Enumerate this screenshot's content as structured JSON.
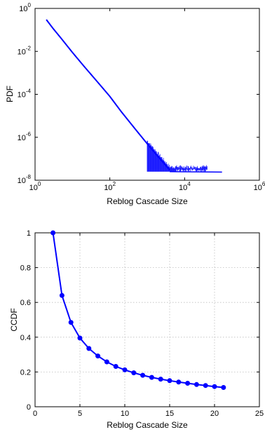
{
  "colors": {
    "series": "#0000ff",
    "axis": "#000000",
    "grid": "#bdbdbd"
  },
  "chart_data": [
    {
      "type": "line",
      "title": "",
      "xlabel": "Reblog Cascade Size",
      "ylabel": "PDF",
      "xscale": "log",
      "yscale": "log",
      "xlim": [
        1,
        1000000
      ],
      "ylim": [
        1e-08,
        1
      ],
      "grid": false,
      "legend": "none",
      "x_ticks": [
        {
          "value": 1,
          "base": "10",
          "exp": "0"
        },
        {
          "value": 100,
          "base": "10",
          "exp": "2"
        },
        {
          "value": 10000,
          "base": "10",
          "exp": "4"
        },
        {
          "value": 1000000,
          "base": "10",
          "exp": "6"
        }
      ],
      "y_ticks": [
        {
          "value": 1e-08,
          "base": "10",
          "exp": "-8"
        },
        {
          "value": 1e-06,
          "base": "10",
          "exp": "-6"
        },
        {
          "value": 0.0001,
          "base": "10",
          "exp": "-4"
        },
        {
          "value": 0.01,
          "base": "10",
          "exp": "-2"
        },
        {
          "value": 1,
          "base": "10",
          "exp": "0"
        }
      ],
      "series": [
        {
          "x": [
            2,
            3,
            5,
            10,
            20,
            50,
            100,
            200,
            500,
            1000,
            2000,
            4000
          ],
          "y": [
            0.3,
            0.12,
            0.04,
            0.009,
            0.0021,
            0.00033,
            8e-05,
            1.6e-05,
            2.2e-06,
            5e-07,
            1.2e-07,
            3e-08
          ]
        }
      ],
      "scatter_band": {
        "x_min": 1000,
        "x_max": 40000,
        "y_floor": 2.5e-08
      },
      "tail": {
        "x": [
          4000,
          100000
        ],
        "y": [
          2.5e-08,
          2.4e-08
        ]
      }
    },
    {
      "type": "line",
      "title": "",
      "xlabel": "Reblog Cascade Size",
      "ylabel": "CCDF",
      "xlim": [
        0,
        25
      ],
      "ylim": [
        0,
        1
      ],
      "grid": true,
      "legend": "none",
      "x_ticks": [
        0,
        5,
        10,
        15,
        20,
        25
      ],
      "y_ticks": [
        0,
        0.2,
        0.4,
        0.6,
        0.8,
        1
      ],
      "series": [
        {
          "x": [
            2,
            3,
            4,
            5,
            6,
            7,
            8,
            9,
            10,
            11,
            12,
            13,
            14,
            15,
            16,
            17,
            18,
            19,
            20,
            21
          ],
          "y": [
            1.0,
            0.64,
            0.485,
            0.395,
            0.335,
            0.292,
            0.258,
            0.232,
            0.212,
            0.195,
            0.181,
            0.169,
            0.159,
            0.15,
            0.142,
            0.135,
            0.128,
            0.122,
            0.116,
            0.111
          ]
        }
      ]
    }
  ]
}
